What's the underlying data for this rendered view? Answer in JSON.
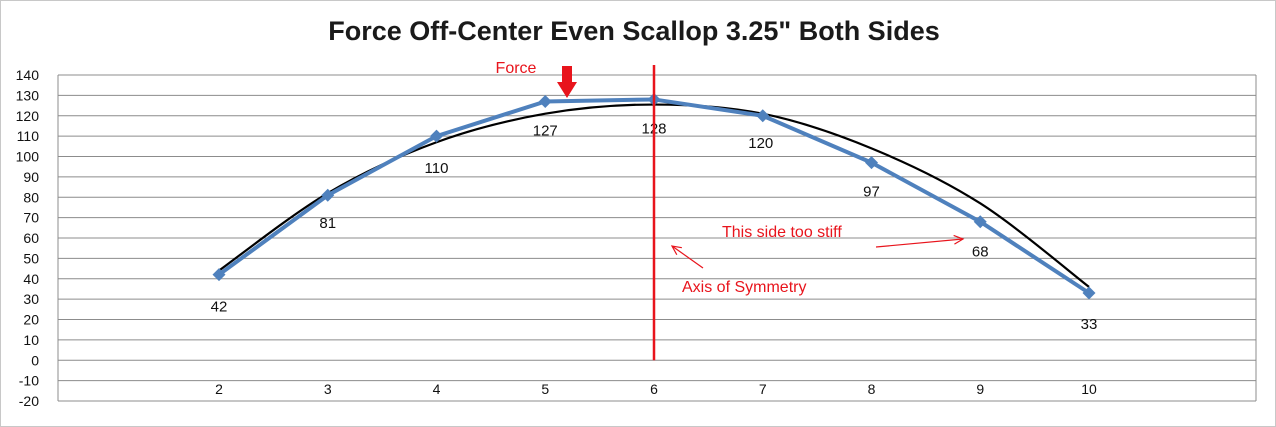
{
  "chart_data": {
    "type": "line",
    "title": "Force Off-Center Even Scallop 3.25\" Both Sides",
    "xlabel": "",
    "ylabel": "",
    "categories": [
      "2",
      "3",
      "4",
      "5",
      "6",
      "7",
      "8",
      "9",
      "10"
    ],
    "series": [
      {
        "values": [
          42,
          81,
          110,
          127,
          128,
          120,
          97,
          68,
          33
        ],
        "color": "#4f81bd",
        "marker": "diamond",
        "data_labels": [
          "42",
          "81",
          "110",
          "127",
          "128",
          "120",
          "97",
          "68",
          "33"
        ]
      },
      {
        "values": [
          44,
          82,
          107,
          121,
          125.5,
          121,
          104,
          77,
          36
        ],
        "color": "#000000",
        "style": "smooth-trend"
      }
    ],
    "ylim": [
      -20,
      140
    ],
    "yticks": [
      -20,
      -10,
      0,
      10,
      20,
      30,
      40,
      50,
      60,
      70,
      80,
      90,
      100,
      110,
      120,
      130,
      140
    ],
    "grid": true,
    "legend": "none",
    "annotations": {
      "force_label": "Force",
      "force_arrow_x": 5.2,
      "axis_label": "Axis of Symmetry",
      "axis_x": 6,
      "stiff_label": "This side too stiff",
      "annotation_color": "#e8141c"
    }
  }
}
